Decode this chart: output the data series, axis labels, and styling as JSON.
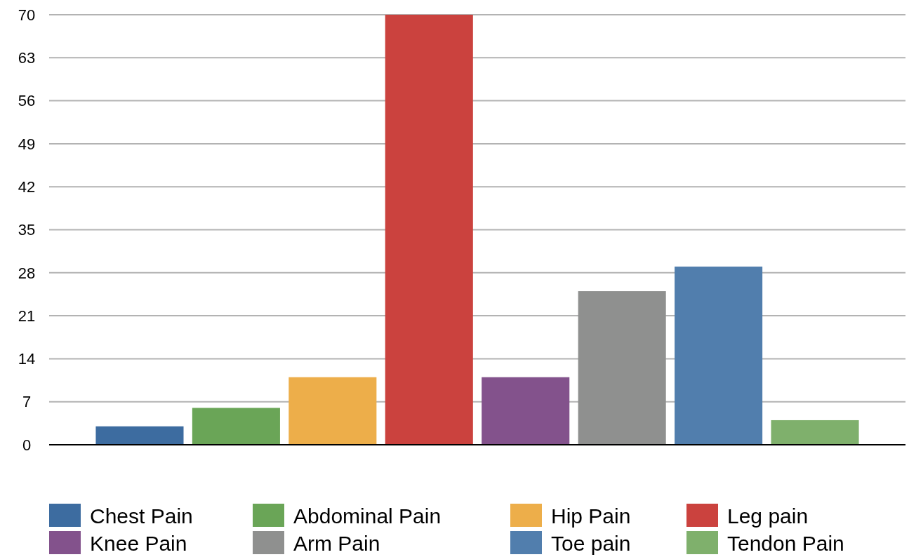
{
  "chart_data": {
    "type": "bar",
    "categories": [
      null
    ],
    "series": [
      {
        "name": "Chest Pain",
        "color": "#3d6ca0",
        "values": [
          3
        ]
      },
      {
        "name": "Abdominal Pain",
        "color": "#6aa557",
        "values": [
          6
        ]
      },
      {
        "name": "Hip Pain",
        "color": "#edae4a",
        "values": [
          11
        ]
      },
      {
        "name": "Leg pain",
        "color": "#cb423e",
        "values": [
          70
        ]
      },
      {
        "name": "Knee Pain",
        "color": "#83528c",
        "values": [
          11
        ]
      },
      {
        "name": "Arm Pain",
        "color": "#8f908f",
        "values": [
          25
        ]
      },
      {
        "name": "Toe pain",
        "color": "#517ead",
        "values": [
          29
        ]
      },
      {
        "name": "Tendon Pain",
        "color": "#7fb06c",
        "values": [
          4
        ]
      }
    ],
    "ylim": [
      0,
      70
    ],
    "yticks": [
      0,
      7,
      14,
      21,
      28,
      35,
      42,
      49,
      56,
      63,
      70
    ],
    "grid": "y",
    "legend": "bottom"
  }
}
